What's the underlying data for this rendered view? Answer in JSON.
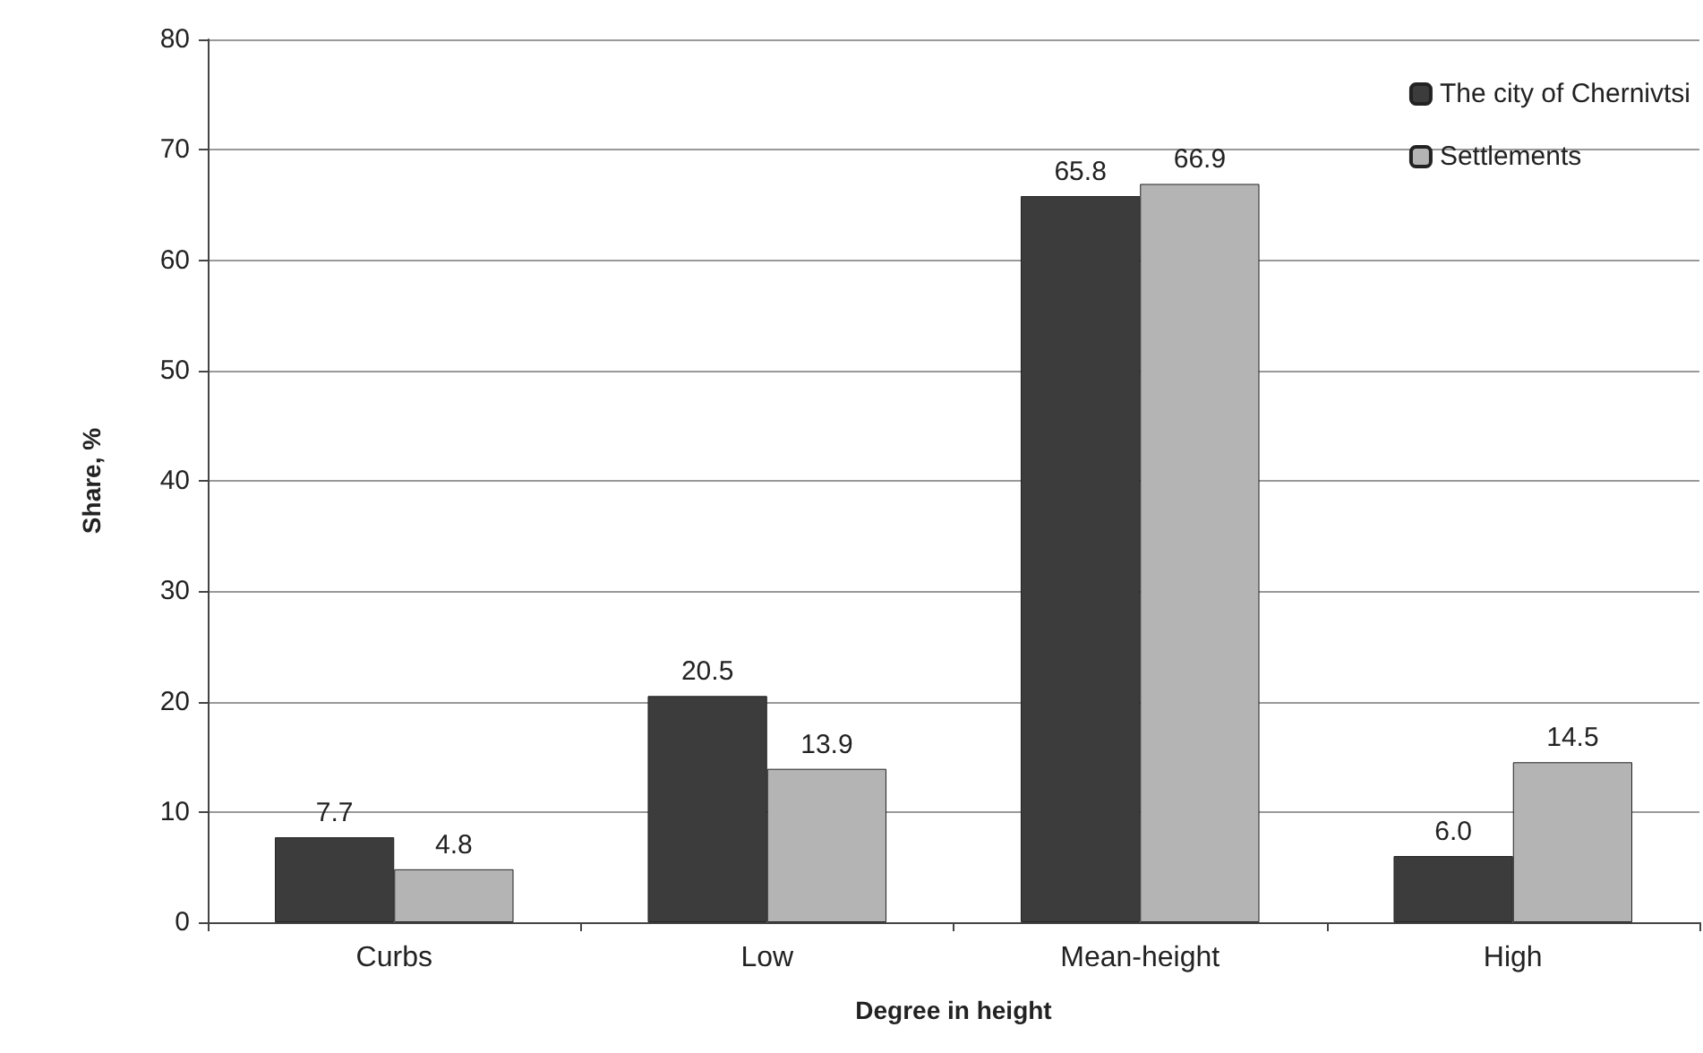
{
  "chart_data": {
    "type": "bar",
    "xlabel": "Degree in height",
    "ylabel": "Share, %",
    "categories": [
      "Curbs",
      "Low",
      "Mean-height",
      "High"
    ],
    "series": [
      {
        "name": "The city of Chernivtsi",
        "color": "#3c3c3c",
        "values": [
          7.7,
          20.5,
          65.8,
          6.0
        ],
        "value_labels": [
          "7.7",
          "20.5",
          "65.8",
          "6.0"
        ]
      },
      {
        "name": "Settlements",
        "color": "#b4b4b4",
        "values": [
          4.8,
          13.9,
          66.9,
          14.5
        ],
        "value_labels": [
          "4.8",
          "13.9",
          "66.9",
          "14.5"
        ]
      }
    ],
    "ylim": [
      0,
      80
    ],
    "yticks": [
      0,
      10,
      20,
      30,
      40,
      50,
      60,
      70,
      80
    ],
    "grid": "y",
    "legend": "top right"
  }
}
